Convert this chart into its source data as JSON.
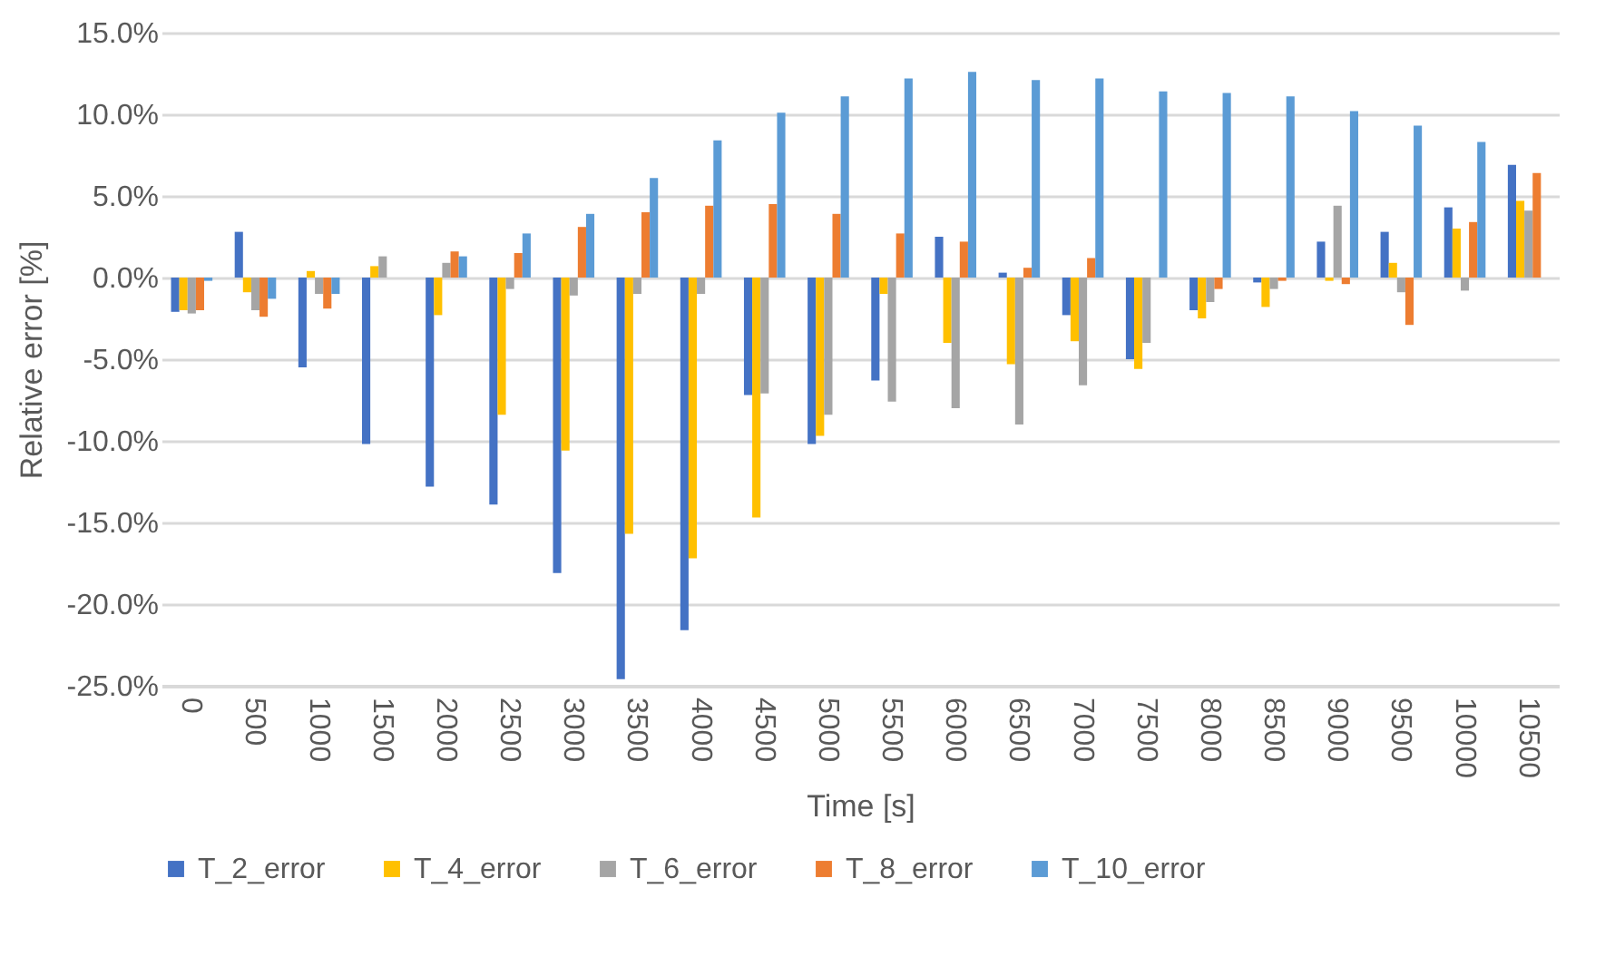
{
  "chart_data": {
    "type": "bar",
    "xlabel": "Time [s]",
    "ylabel": "Relative error [%]",
    "categories": [
      "0",
      "500",
      "1000",
      "1500",
      "2000",
      "2500",
      "3000",
      "3500",
      "4000",
      "4500",
      "5000",
      "5500",
      "6000",
      "6500",
      "7000",
      "7500",
      "8000",
      "8500",
      "9000",
      "9500",
      "10000",
      "10500"
    ],
    "series": [
      {
        "name": "T_2_error",
        "color": "#4472c4",
        "values": [
          -2.1,
          2.8,
          -5.5,
          -10.2,
          -12.8,
          -13.9,
          -18.1,
          -24.6,
          -21.6,
          -7.2,
          -10.2,
          -6.3,
          2.5,
          0.3,
          -2.3,
          -5.0,
          -2.0,
          -0.3,
          2.2,
          2.8,
          4.3,
          6.9
        ]
      },
      {
        "name": "T_4_error",
        "color": "#ffc000",
        "values": [
          -2.0,
          -0.9,
          0.4,
          0.7,
          -2.3,
          -8.4,
          -10.6,
          -15.7,
          -17.2,
          -14.7,
          -9.7,
          -1.0,
          -4.0,
          -5.3,
          -3.9,
          -5.6,
          -2.5,
          -1.8,
          -0.2,
          0.9,
          3.0,
          4.7
        ]
      },
      {
        "name": "T_6_error",
        "color": "#a5a5a5",
        "values": [
          -2.2,
          -2.0,
          -1.0,
          1.3,
          0.9,
          -0.7,
          -1.1,
          -1.0,
          -1.0,
          -7.1,
          -8.4,
          -7.6,
          -8.0,
          -9.0,
          -6.6,
          -4.0,
          -1.5,
          -0.7,
          4.4,
          -0.9,
          -0.8,
          4.1
        ]
      },
      {
        "name": "T_8_error",
        "color": "#ed7d31",
        "values": [
          -2.0,
          -2.4,
          -1.9,
          0,
          1.6,
          1.5,
          3.1,
          4.0,
          4.4,
          4.5,
          3.9,
          2.7,
          2.2,
          0.6,
          1.2,
          0,
          -0.7,
          -0.2,
          -0.4,
          -2.9,
          3.4,
          6.4
        ]
      },
      {
        "name": "T_10_error",
        "color": "#5b9bd5",
        "values": [
          -0.2,
          -1.3,
          -1.0,
          0,
          1.3,
          2.7,
          3.9,
          6.1,
          8.4,
          10.1,
          11.1,
          12.2,
          12.6,
          12.1,
          12.2,
          11.4,
          11.3,
          11.1,
          10.2,
          9.3,
          8.3,
          null
        ]
      }
    ],
    "ylim": [
      -25,
      15
    ],
    "yticks": [
      {
        "value": -25,
        "label": "-25.0%"
      },
      {
        "value": -20,
        "label": "-20.0%"
      },
      {
        "value": -15,
        "label": "-15.0%"
      },
      {
        "value": -10,
        "label": "-10.0%"
      },
      {
        "value": -5,
        "label": "-5.0%"
      },
      {
        "value": 0,
        "label": "0.0%"
      },
      {
        "value": 5,
        "label": "5.0%"
      },
      {
        "value": 10,
        "label": "10.0%"
      },
      {
        "value": 15,
        "label": "15.0%"
      }
    ],
    "grid": "y",
    "legend": "bottom"
  }
}
